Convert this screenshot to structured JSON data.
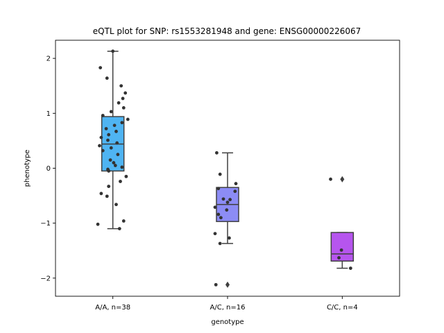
{
  "chart_data": {
    "type": "box",
    "title": "eQTL plot for SNP: rs1553281948 and gene: ENSG00000226067",
    "xlabel": "genotype",
    "ylabel": "phenotype",
    "ylim": [
      -2.33,
      2.33
    ],
    "yticks": [
      -2,
      -1,
      0,
      1,
      2
    ],
    "yticklabels": [
      "−2",
      "−1",
      "0",
      "1",
      "2"
    ],
    "grid": false,
    "categories": [
      "A/A, n=38",
      "A/C, n=16",
      "C/C, n=4"
    ],
    "boxes": [
      {
        "label": "A/A, n=38",
        "color": "#4fb4f2",
        "q1": -0.05,
        "median": 0.44,
        "q3": 0.94,
        "whisker_low": -1.1,
        "whisker_high": 2.13,
        "outliers": []
      },
      {
        "label": "A/C, n=16",
        "color": "#8c8cf5",
        "q1": -0.97,
        "median": -0.66,
        "q3": -0.35,
        "whisker_low": -1.37,
        "whisker_high": 0.28,
        "outliers": [
          -2.12
        ]
      },
      {
        "label": "C/C, n=4",
        "color": "#b655ee",
        "q1": -1.69,
        "median": -1.56,
        "q3": -1.17,
        "whisker_low": -1.82,
        "whisker_high": -1.17,
        "outliers": [
          -0.2
        ]
      }
    ],
    "points": [
      [
        [
          0.0,
          2.13
        ],
        [
          -0.15,
          1.83
        ],
        [
          -0.07,
          1.64
        ],
        [
          0.1,
          1.5
        ],
        [
          0.15,
          1.37
        ],
        [
          0.12,
          1.27
        ],
        [
          0.07,
          1.19
        ],
        [
          0.13,
          1.1
        ],
        [
          -0.02,
          1.03
        ],
        [
          -0.12,
          0.96
        ],
        [
          0.18,
          0.89
        ],
        [
          0.11,
          0.83
        ],
        [
          0.02,
          0.78
        ],
        [
          -0.08,
          0.72
        ],
        [
          0.04,
          0.67
        ],
        [
          -0.05,
          0.61
        ],
        [
          -0.14,
          0.56
        ],
        [
          -0.06,
          0.51
        ],
        [
          0.05,
          0.46
        ],
        [
          -0.16,
          0.41
        ],
        [
          -0.02,
          0.37
        ],
        [
          -0.12,
          0.32
        ],
        [
          0.06,
          0.25
        ],
        [
          -0.03,
          0.15
        ],
        [
          0.01,
          0.1
        ],
        [
          0.03,
          0.05
        ],
        [
          -0.06,
          -0.02
        ],
        [
          0.11,
          0.02
        ],
        [
          -0.05,
          -0.05
        ],
        [
          0.16,
          -0.15
        ],
        [
          0.09,
          -0.24
        ],
        [
          -0.05,
          -0.33
        ],
        [
          -0.14,
          -0.46
        ],
        [
          -0.07,
          -0.51
        ],
        [
          0.04,
          -0.66
        ],
        [
          0.13,
          -0.96
        ],
        [
          -0.18,
          -1.02
        ],
        [
          0.08,
          -1.1
        ]
      ],
      [
        [
          -0.13,
          0.28
        ],
        [
          -0.09,
          -0.11
        ],
        [
          0.1,
          -0.28
        ],
        [
          -0.11,
          -0.37
        ],
        [
          0.09,
          -0.42
        ],
        [
          -0.05,
          -0.56
        ],
        [
          0.0,
          -0.62
        ],
        [
          -0.15,
          -0.71
        ],
        [
          -0.01,
          -0.76
        ],
        [
          -0.11,
          -0.84
        ],
        [
          -0.08,
          -0.9
        ],
        [
          -0.15,
          -1.19
        ],
        [
          0.02,
          -1.27
        ],
        [
          -0.09,
          -1.37
        ],
        [
          -0.14,
          -2.12
        ],
        [
          0.03,
          -0.57
        ]
      ],
      [
        [
          -0.14,
          -0.2
        ],
        [
          -0.01,
          -1.49
        ],
        [
          -0.04,
          -1.63
        ],
        [
          0.1,
          -1.82
        ]
      ]
    ]
  }
}
